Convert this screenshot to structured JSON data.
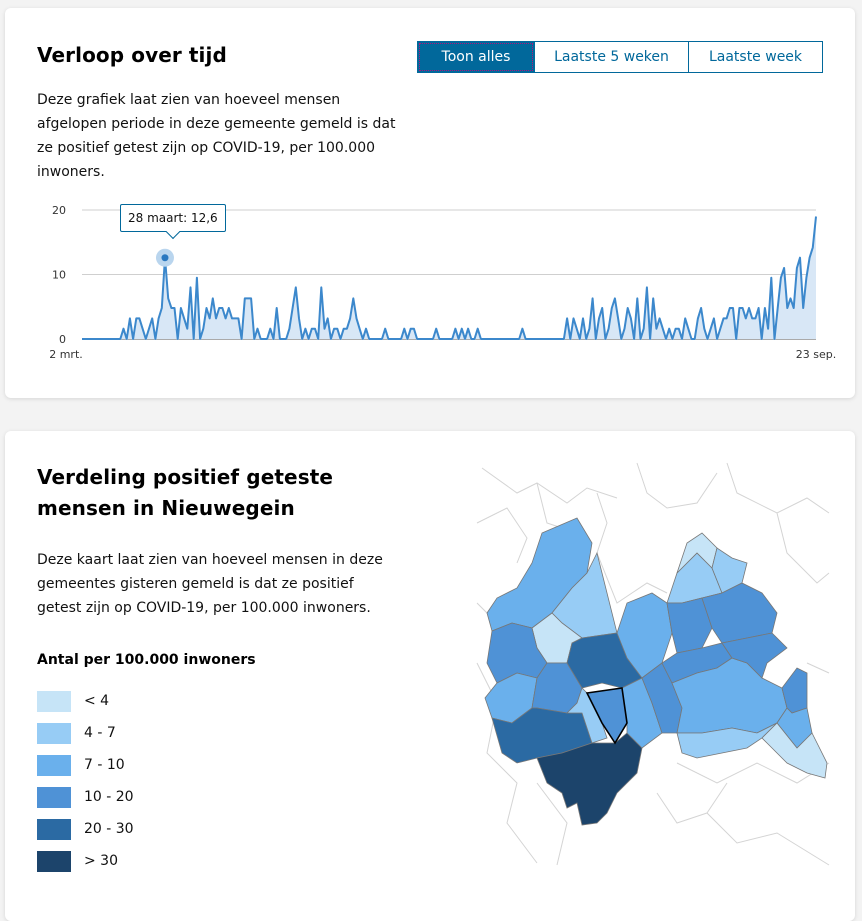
{
  "timeline": {
    "title": "Verloop over tijd",
    "description": "Deze grafiek laat zien van hoeveel mensen afgelopen periode in deze gemeente gemeld is dat ze positief getest zijn op COVID-19, per 100.000 inwoners.",
    "toggle": {
      "all": "Toon alles",
      "last5": "Laatste 5 weken",
      "lastweek": "Laatste week"
    },
    "tooltip": "28 maart: 12,6",
    "colors": {
      "line": "#3c88cc",
      "area": "#d8e7f6",
      "accent": "#01689b"
    }
  },
  "chart_data": {
    "type": "area",
    "title": "Verloop over tijd",
    "xlabel": "",
    "ylabel": "",
    "x_start": "2 mrt.",
    "x_end": "23 sep.",
    "x_tick_labels": [
      "2 mrt.",
      "23 sep."
    ],
    "y_ticks": [
      0,
      10,
      20
    ],
    "ylim": [
      0,
      20
    ],
    "highlight": {
      "label": "28 maart",
      "index": 26,
      "value": 12.6
    },
    "values": [
      0,
      0,
      0,
      0,
      0,
      0,
      0,
      0,
      0,
      0,
      0,
      0,
      0,
      1.6,
      0,
      3.2,
      0,
      3.2,
      3.2,
      1.6,
      0,
      1.6,
      3.2,
      0,
      3.2,
      4.8,
      12.6,
      6.3,
      4.8,
      4.8,
      0,
      4.8,
      3.2,
      1.6,
      8,
      0,
      9.5,
      0,
      1.6,
      4.8,
      3.2,
      6.3,
      3.2,
      4.8,
      4.8,
      3.2,
      4.8,
      3.2,
      3.2,
      3.2,
      0,
      6.3,
      6.3,
      6.3,
      0,
      1.6,
      0,
      0,
      0,
      1.6,
      0,
      4.8,
      0,
      0,
      0,
      1.6,
      4.8,
      8,
      3.2,
      0,
      1.6,
      0,
      1.6,
      1.6,
      0,
      8,
      1.6,
      3.2,
      0,
      1.6,
      1.6,
      0,
      1.6,
      1.6,
      3.2,
      6.3,
      3.2,
      1.6,
      0,
      1.6,
      0,
      0,
      0,
      0,
      0,
      1.6,
      0,
      0,
      0,
      0,
      0,
      1.6,
      0,
      1.6,
      1.6,
      0,
      0,
      0,
      0,
      0,
      0,
      1.6,
      0,
      0,
      0,
      0,
      0,
      1.6,
      0,
      1.6,
      0,
      1.6,
      0,
      0,
      1.6,
      0,
      0,
      0,
      0,
      0,
      0,
      0,
      0,
      0,
      0,
      0,
      0,
      0,
      1.6,
      0,
      0,
      0,
      0,
      0,
      0,
      0,
      0,
      0,
      0,
      0,
      0,
      0,
      3.2,
      0,
      3.2,
      1.6,
      0,
      3.2,
      0,
      1.6,
      6.3,
      0,
      3.2,
      4.8,
      0,
      1.6,
      4.8,
      6.3,
      3.2,
      0,
      1.6,
      4.8,
      3.2,
      0,
      6.3,
      0,
      1.6,
      8,
      0,
      6.3,
      1.6,
      3.2,
      1.6,
      0,
      1.6,
      0,
      1.6,
      1.6,
      0,
      3.2,
      1.6,
      0,
      0,
      3.2,
      4.8,
      1.6,
      0,
      1.6,
      3.2,
      0,
      1.6,
      3.2,
      3.2,
      4.8,
      4.8,
      0,
      4.8,
      4.8,
      3.2,
      4.8,
      3.2,
      3.2,
      4.8,
      0,
      4.8,
      1.6,
      9.5,
      0,
      4.8,
      9.5,
      11,
      4.8,
      6.3,
      4.8,
      11,
      12.6,
      4.8,
      9.5,
      12.6,
      14.2,
      19
    ]
  },
  "map": {
    "title": "Verdeling positief geteste mensen in Nieuwegein",
    "description": "Deze kaart laat zien van hoeveel mensen in deze gemeentes gisteren gemeld is dat ze positief getest zijn op COVID-19, per 100.000 inwoners.",
    "legend_title": "Antal per 100.000 inwoners",
    "legend": [
      {
        "label": "< 4",
        "color": "#c6e4f7"
      },
      {
        "label": "4 - 7",
        "color": "#97ccf5"
      },
      {
        "label": "7 - 10",
        "color": "#6ab0ec"
      },
      {
        "label": "10 - 20",
        "color": "#4f92d6"
      },
      {
        "label": "20 - 30",
        "color": "#2b6aa3"
      },
      {
        "label": "> 30",
        "color": "#1c446b"
      }
    ]
  }
}
